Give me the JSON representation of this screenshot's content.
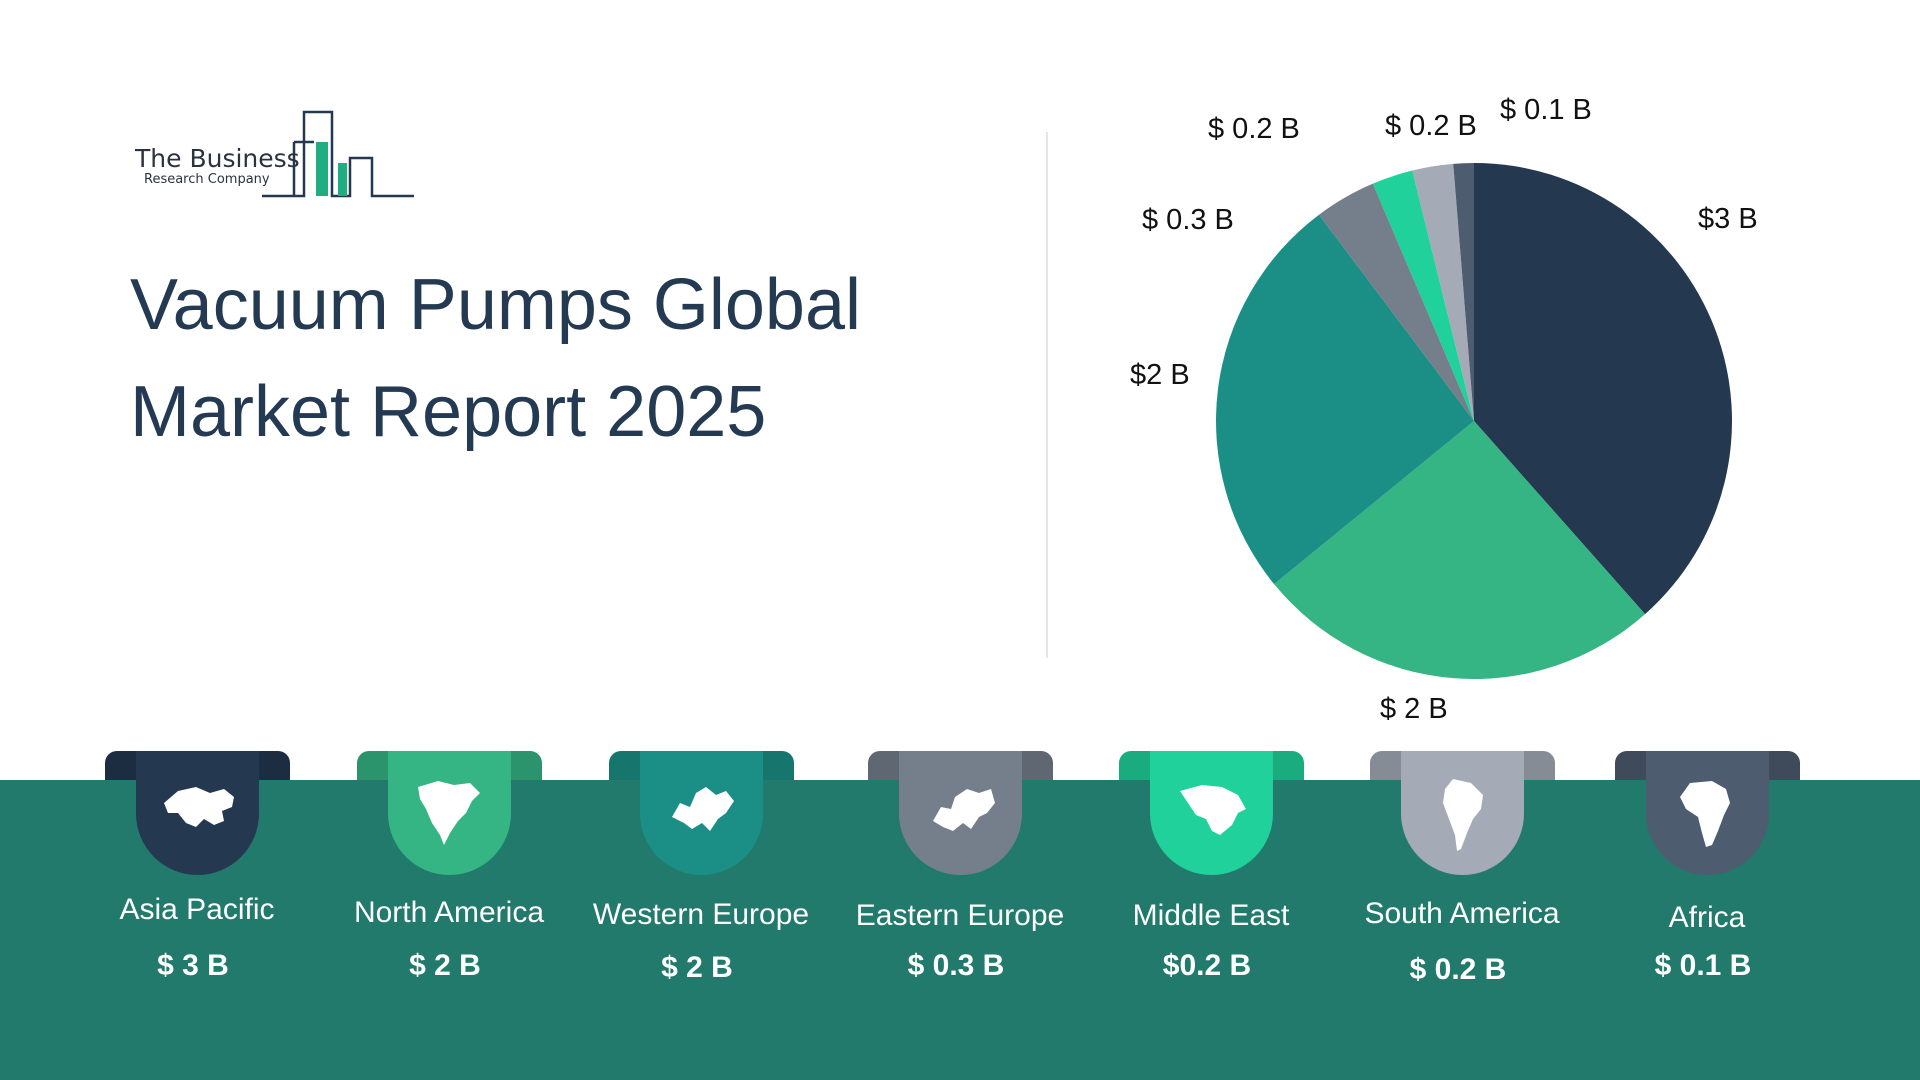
{
  "logo": {
    "line1": "The Business",
    "line2": "Research Company"
  },
  "title": {
    "line1": "Vacuum Pumps Global",
    "line2": "Market Report 2025"
  },
  "chart_data": {
    "type": "pie",
    "title": "",
    "categories": [
      "Asia Pacific",
      "North America",
      "Western Europe",
      "Eastern Europe",
      "Middle East",
      "South America",
      "Africa"
    ],
    "values": [
      3,
      2,
      2,
      0.3,
      0.2,
      0.2,
      0.1
    ],
    "labels": [
      "$3 B",
      "$ 2 B",
      "$2 B",
      "$ 0.3 B",
      "$ 0.2 B",
      "$ 0.2  B",
      "$ 0.1 B"
    ],
    "colors": [
      "#243850",
      "#35b584",
      "#1b8f86",
      "#757f8c",
      "#20d19b",
      "#a4abb6",
      "#4e5c70"
    ],
    "start_angle_deg": 0,
    "direction": "clockwise"
  },
  "regions": [
    {
      "name": "Asia Pacific",
      "value": "$ 3 B",
      "color": "#243850",
      "icon": "asia-map-icon"
    },
    {
      "name": "North America",
      "value": "$ 2 B",
      "color": "#35b584",
      "icon": "north-america-map-icon"
    },
    {
      "name": "Western Europe",
      "value": "$ 2 B",
      "color": "#1b8f86",
      "icon": "western-europe-map-icon"
    },
    {
      "name": "Eastern Europe",
      "value": "$ 0.3 B",
      "color": "#757f8c",
      "icon": "eastern-europe-map-icon"
    },
    {
      "name": "Middle East",
      "value": "$0.2 B",
      "color": "#20d19b",
      "icon": "middle-east-map-icon"
    },
    {
      "name": "South America",
      "value": "$ 0.2 B",
      "color": "#a4abb6",
      "icon": "south-america-map-icon"
    },
    {
      "name": "Africa",
      "value": "$ 0.1 B",
      "color": "#4e5c70",
      "icon": "africa-map-icon"
    }
  ]
}
